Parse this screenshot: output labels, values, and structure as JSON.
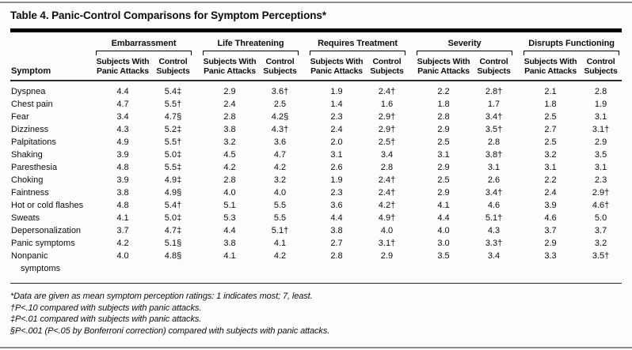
{
  "title": "Table 4. Panic-Control Comparisons for Symptom Perceptions*",
  "header": {
    "symptom_label": "Symptom",
    "groups": [
      "Embarrassment",
      "Life Threatening",
      "Requires Treatment",
      "Severity",
      "Disrupts Functioning"
    ],
    "subcolumns": {
      "panic_line1": "Subjects With",
      "panic_line2": "Panic Attacks",
      "control_line1": "Control",
      "control_line2": "Subjects"
    }
  },
  "rows": [
    {
      "symptom": "Dyspnea",
      "values": [
        "4.4",
        "5.4‡",
        "2.9",
        "3.6†",
        "1.9",
        "2.4†",
        "2.2",
        "2.8†",
        "2.1",
        "2.8"
      ]
    },
    {
      "symptom": "Chest pain",
      "values": [
        "4.7",
        "5.5†",
        "2.4",
        "2.5",
        "1.4",
        "1.6",
        "1.8",
        "1.7",
        "1.8",
        "1.9"
      ]
    },
    {
      "symptom": "Fear",
      "values": [
        "3.4",
        "4.7§",
        "2.8",
        "4.2§",
        "2.3",
        "2.9†",
        "2.8",
        "3.4†",
        "2.5",
        "3.1"
      ]
    },
    {
      "symptom": "Dizziness",
      "values": [
        "4.3",
        "5.2‡",
        "3.8",
        "4.3†",
        "2.4",
        "2.9†",
        "2.9",
        "3.5†",
        "2.7",
        "3.1†"
      ]
    },
    {
      "symptom": "Palpitations",
      "values": [
        "4.9",
        "5.5†",
        "3.2",
        "3.6",
        "2.0",
        "2.5†",
        "2.5",
        "2.8",
        "2.5",
        "2.9"
      ]
    },
    {
      "symptom": "Shaking",
      "values": [
        "3.9",
        "5.0‡",
        "4.5",
        "4.7",
        "3.1",
        "3.4",
        "3.1",
        "3.8†",
        "3.2",
        "3.5"
      ]
    },
    {
      "symptom": "Paresthesia",
      "values": [
        "4.8",
        "5.5‡",
        "4.2",
        "4.2",
        "2.6",
        "2.8",
        "2.9",
        "3.1",
        "3.1",
        "3.1"
      ]
    },
    {
      "symptom": "Choking",
      "values": [
        "3.9",
        "4.9‡",
        "2.8",
        "3.2",
        "1.9",
        "2.4†",
        "2.5",
        "2.6",
        "2.2",
        "2.3"
      ]
    },
    {
      "symptom": "Faintness",
      "values": [
        "3.8",
        "4.9§",
        "4.0",
        "4.0",
        "2.3",
        "2.4†",
        "2.9",
        "3.4†",
        "2.4",
        "2.9†"
      ]
    },
    {
      "symptom": "Hot or cold flashes",
      "values": [
        "4.8",
        "5.4†",
        "5.1",
        "5.5",
        "3.6",
        "4.2†",
        "4.1",
        "4.6",
        "3.9",
        "4.6†"
      ]
    },
    {
      "symptom": "Sweats",
      "values": [
        "4.1",
        "5.0‡",
        "5.3",
        "5.5",
        "4.4",
        "4.9†",
        "4.4",
        "5.1†",
        "4.6",
        "5.0"
      ]
    },
    {
      "symptom": "Depersonalization",
      "values": [
        "3.7",
        "4.7‡",
        "4.4",
        "5.1†",
        "3.8",
        "4.0",
        "4.0",
        "4.3",
        "3.7",
        "3.7"
      ]
    },
    {
      "symptom": "Panic symptoms",
      "values": [
        "4.2",
        "5.1§",
        "3.8",
        "4.1",
        "2.7",
        "3.1†",
        "3.0",
        "3.3†",
        "2.9",
        "3.2"
      ]
    },
    {
      "symptom": "Nonpanic",
      "symptom_line2": "symptoms",
      "values": [
        "4.0",
        "4.8§",
        "4.1",
        "4.2",
        "2.8",
        "2.9",
        "3.5",
        "3.4",
        "3.3",
        "3.5†"
      ]
    }
  ],
  "footnotes": [
    "*Data are given as mean symptom perception ratings: 1 indicates most; 7, least.",
    "†P<.10 compared with subjects with panic attacks.",
    "‡P<.01 compared with subjects with panic attacks.",
    "§P<.001 (P<.05 by Bonferroni correction) compared with subjects with panic attacks."
  ],
  "colors": {
    "rule": "#000000",
    "outer_border": "#8c8c8c",
    "text": "#0d0d0d"
  }
}
